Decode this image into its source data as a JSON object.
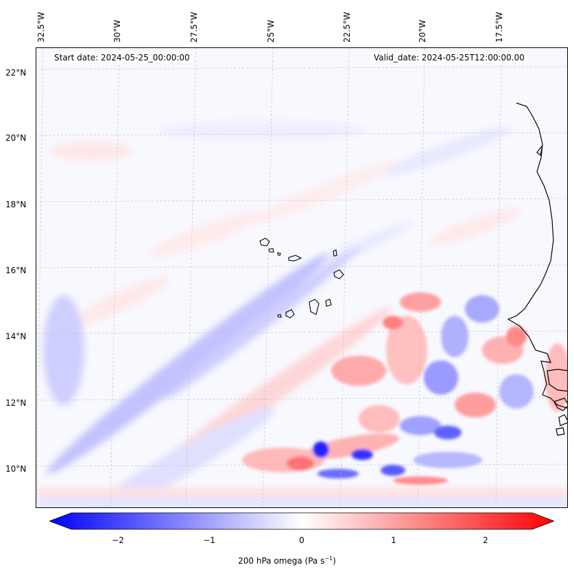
{
  "map": {
    "start_date": "Start date: 2024-05-25_00:00:00",
    "valid_date": "Valid_date: 2024-05-25T12:00:00.00",
    "lon_labels": [
      "32.5°W",
      "30°W",
      "27.5°W",
      "25°W",
      "22.5°W",
      "20°W",
      "17.5°W"
    ],
    "lat_labels": [
      "22°N",
      "20°N",
      "18°N",
      "16°N",
      "14°N",
      "12°N",
      "10°N"
    ],
    "colorbar": {
      "ticks": [
        "−2",
        "−1",
        "0",
        "1",
        "2"
      ],
      "label_main": "200 hPa omega (Pa s",
      "label_sup": "−1",
      "label_end": ")",
      "min": -2.6,
      "max": 2.6,
      "colors": {
        "neg": "#0000ff",
        "mid": "#ffffff",
        "pos": "#ff0000"
      }
    },
    "colors": {
      "coastline": "#000000",
      "gridline": "#bbbbbb"
    }
  }
}
